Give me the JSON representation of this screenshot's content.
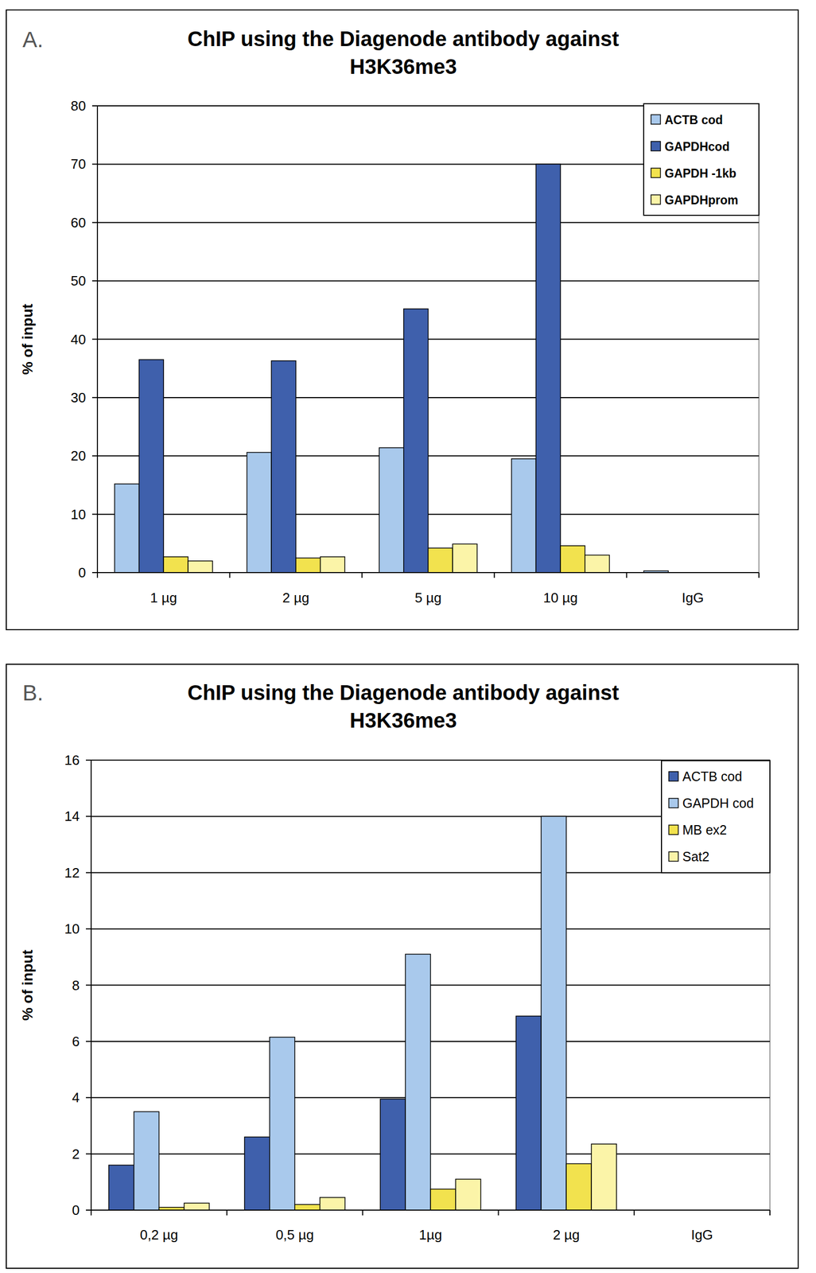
{
  "chart_data": [
    {
      "type": "bar",
      "panel": "A.",
      "title": [
        "ChIP using the Diagenode antibody against",
        "H3K36me3"
      ],
      "y_label": "% of input",
      "categories": [
        "1 µg",
        "2 µg",
        "5 µg",
        "10 µg",
        "IgG"
      ],
      "series": [
        {
          "name": "ACTB cod",
          "color": "#a9c9ec",
          "values": [
            15.2,
            20.6,
            21.4,
            19.5,
            0.3
          ]
        },
        {
          "name": "GAPDHcod",
          "color": "#3f60ac",
          "values": [
            36.5,
            36.3,
            45.2,
            70,
            0
          ]
        },
        {
          "name": "GAPDH -1kb",
          "color": "#f2e24e",
          "values": [
            2.7,
            2.5,
            4.2,
            4.6,
            0
          ]
        },
        {
          "name": "GAPDHprom",
          "color": "#fbf4a8",
          "values": [
            2.0,
            2.7,
            4.9,
            3.0,
            0
          ]
        }
      ],
      "ylim": [
        0,
        80
      ],
      "yticks": [
        0,
        10,
        20,
        30,
        40,
        50,
        60,
        70,
        80
      ],
      "grid": true,
      "legend": "top-right"
    },
    {
      "type": "bar",
      "panel": "B.",
      "title": [
        "ChIP using the Diagenode antibody against",
        "H3K36me3"
      ],
      "y_label": "% of input",
      "categories": [
        "0,2 µg",
        "0,5 µg",
        "1µg",
        "2 µg",
        "IgG"
      ],
      "series": [
        {
          "name": "ACTB cod",
          "color": "#3f60ac",
          "values": [
            1.6,
            2.6,
            3.95,
            6.9,
            0
          ]
        },
        {
          "name": "GAPDH cod",
          "color": "#a9c9ec",
          "values": [
            3.5,
            6.15,
            9.1,
            14,
            0
          ]
        },
        {
          "name": "MB ex2",
          "color": "#f2e24e",
          "values": [
            0.1,
            0.2,
            0.75,
            1.65,
            0
          ]
        },
        {
          "name": "Sat2",
          "color": "#fbf4a8",
          "values": [
            0.25,
            0.45,
            1.1,
            2.35,
            0
          ]
        }
      ],
      "ylim": [
        0,
        16
      ],
      "yticks": [
        0,
        2,
        4,
        6,
        8,
        10,
        12,
        14,
        16
      ],
      "grid": true,
      "legend": "top-right"
    }
  ]
}
